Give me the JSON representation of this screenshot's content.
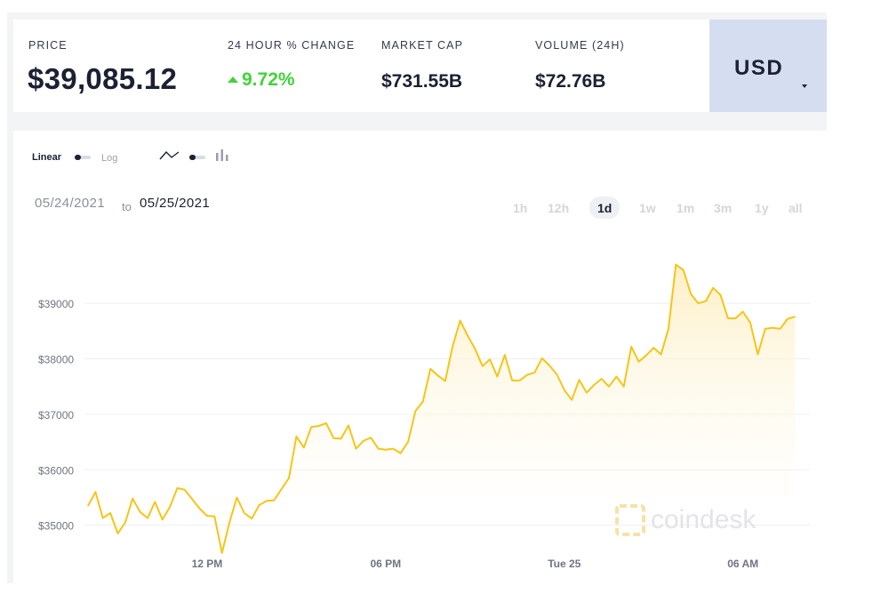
{
  "stats": {
    "price_label": "PRICE",
    "price_value": "$39,085.12",
    "change_label": "24 HOUR % CHANGE",
    "change_value": "9.72%",
    "market_cap_label": "MARKET CAP",
    "market_cap_value": "$731.55B",
    "volume_label": "VOLUME (24H)",
    "volume_value": "$72.76B"
  },
  "currency": {
    "label": "USD"
  },
  "controls": {
    "linear_label": "Linear",
    "log_label": "Log"
  },
  "date_range": {
    "from": "05/24/2021",
    "to_word": "to",
    "to": "05/25/2021"
  },
  "range_buttons": [
    {
      "label": "1h"
    },
    {
      "label": "12h"
    },
    {
      "label": "1d"
    },
    {
      "label": "1w"
    },
    {
      "label": "1m"
    },
    {
      "label": "3m"
    },
    {
      "label": "1y"
    },
    {
      "label": "all"
    }
  ],
  "active_range": "1d",
  "watermark": "coindesk",
  "colors": {
    "line": "#f5c518",
    "fill_top": "#fdefc3",
    "positive": "#41d33a",
    "currency_bg": "#d5ddf0"
  },
  "chart_data": {
    "type": "area",
    "title": "",
    "xlabel": "",
    "ylabel": "",
    "x_start_hour": 8,
    "x_step_hours": 0.25,
    "x_end_hour": 32.25,
    "x_ticks": [
      {
        "hour": 12,
        "label": "12 PM"
      },
      {
        "hour": 18,
        "label": "06 PM"
      },
      {
        "hour": 24,
        "label": "Tue 25"
      },
      {
        "hour": 30,
        "label": "06 AM"
      }
    ],
    "y_ticks": [
      {
        "value": 35000,
        "label": "$35000"
      },
      {
        "value": 36000,
        "label": "$36000"
      },
      {
        "value": 37000,
        "label": "$37000"
      },
      {
        "value": 38000,
        "label": "$38000"
      },
      {
        "value": 39000,
        "label": "$39000"
      }
    ],
    "ylim": [
      34450,
      39900
    ],
    "grid": true,
    "series": [
      {
        "values": [
          35350,
          35600,
          35130,
          35220,
          34850,
          35050,
          35480,
          35240,
          35130,
          35420,
          35100,
          35330,
          35670,
          35640,
          35470,
          35300,
          35170,
          35160,
          34500,
          35050,
          35500,
          35220,
          35120,
          35360,
          35440,
          35450,
          35650,
          35850,
          36600,
          36400,
          36770,
          36790,
          36840,
          36570,
          36560,
          36800,
          36380,
          36520,
          36580,
          36380,
          36360,
          36380,
          36300,
          36500,
          37060,
          37230,
          37820,
          37700,
          37600,
          38230,
          38690,
          38420,
          38180,
          37870,
          37990,
          37680,
          38070,
          37610,
          37610,
          37710,
          37750,
          38010,
          37880,
          37720,
          37440,
          37260,
          37620,
          37390,
          37530,
          37640,
          37500,
          37680,
          37500,
          38220,
          37950,
          38060,
          38200,
          38080,
          38540,
          39700,
          39600,
          39170,
          39000,
          39040,
          39280,
          39150,
          38730,
          38730,
          38850,
          38650,
          38080,
          38540,
          38560,
          38540,
          38720,
          38760
        ]
      }
    ]
  }
}
